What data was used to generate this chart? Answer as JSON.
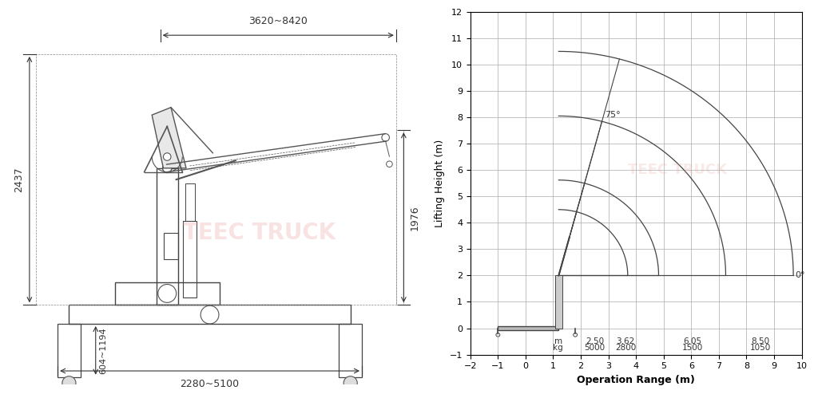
{
  "background_color": "#ffffff",
  "left_panel": {
    "dim_top": "3620~8420",
    "dim_left": "2437",
    "dim_right": "1976",
    "dim_bottom": "2280~5100",
    "dim_leg": "604~1194"
  },
  "right_panel": {
    "xlabel": "Operation Range (m)",
    "ylabel": "Lifting Height (m)",
    "xlim": [
      -2,
      10
    ],
    "ylim": [
      -1,
      12
    ],
    "xticks": [
      -2,
      -1,
      0,
      1,
      2,
      3,
      4,
      5,
      6,
      7,
      8,
      9,
      10
    ],
    "yticks": [
      -1,
      0,
      1,
      2,
      3,
      4,
      5,
      6,
      7,
      8,
      9,
      10,
      11,
      12
    ],
    "arc_radii": [
      2.5,
      3.62,
      6.05,
      8.5
    ],
    "angle_label_75": "75°",
    "angle_label_0": "0°",
    "pivot_x": 1.2,
    "pivot_y": 2.0,
    "table_m": [
      2.5,
      3.62,
      6.05,
      8.5
    ],
    "table_kg": [
      5000,
      2800,
      1500,
      1050
    ],
    "grid_color": "#aaaaaa",
    "line_color": "#333333",
    "arc_color": "#444444"
  },
  "watermark_color": "#e8a0a0",
  "watermark_text": "TEEC TRUCK"
}
